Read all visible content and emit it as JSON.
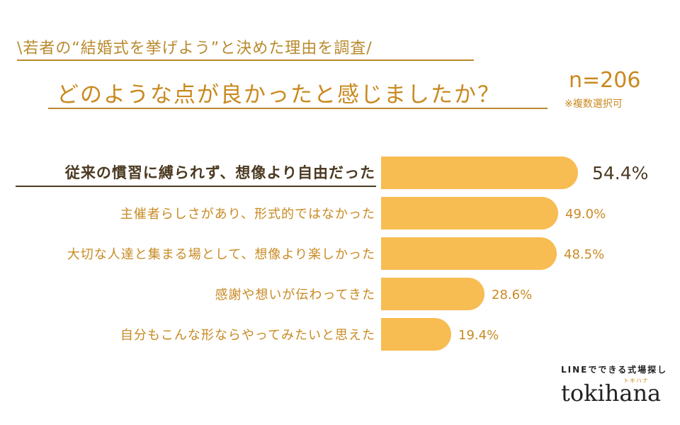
{
  "header": {
    "subtitle": "\\若者の“結婚式を挙げよう”と決めた理由を調査/",
    "title": "どのような点が良かったと感じましたか？",
    "n_value": "n=206",
    "n_note": "※複数選択可"
  },
  "brand": {
    "tagline": "LINEでできる式場探し",
    "kana": "トキハナ",
    "name": "tokihana"
  },
  "colors": {
    "bar": "#F7BC52",
    "accent": "#C9891F",
    "highlight_text": "#4B3A22"
  },
  "chart_data": {
    "type": "bar",
    "orientation": "horizontal",
    "title": "どのような点が良かったと感じましたか？",
    "categories": [
      "従来の慣習に縛られず、想像より自由だった",
      "主催者らしさがあり、形式的ではなかった",
      "大切な人達と集まる場として、想像より楽しかった",
      "感謝や想いが伝わってきた",
      "自分もこんな形ならやってみたいと思えた"
    ],
    "values": [
      54.4,
      49.0,
      48.5,
      28.6,
      19.4
    ],
    "value_labels": [
      "54.4%",
      "49.0%",
      "48.5%",
      "28.6%",
      "19.4%"
    ],
    "unit": "%",
    "highlight_index": 0,
    "xlim": [
      0,
      54.4
    ],
    "grid": false,
    "legend": "none"
  }
}
